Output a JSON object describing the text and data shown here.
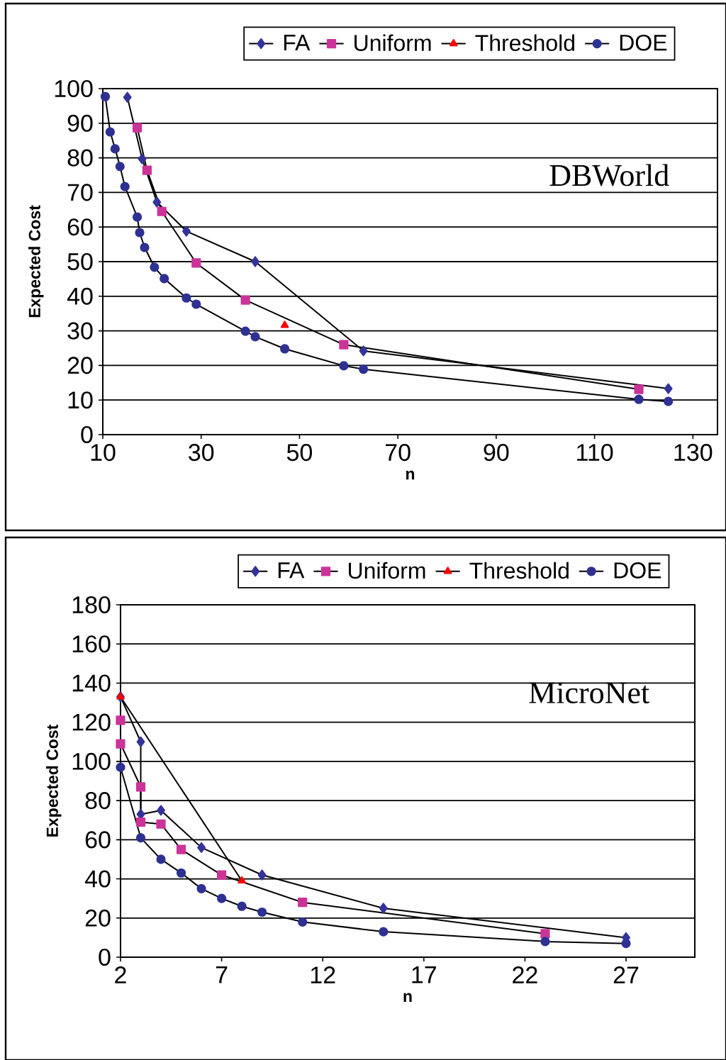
{
  "chart_data": [
    {
      "type": "line",
      "xlabel": "n",
      "ylabel": "Expected Cost",
      "annotations": [
        "DBWorld"
      ],
      "xlim": [
        10,
        135
      ],
      "ylim": [
        0,
        100
      ],
      "xticks": [
        10,
        30,
        50,
        70,
        90,
        110,
        130
      ],
      "yticks": [
        0,
        10,
        20,
        30,
        40,
        50,
        60,
        70,
        80,
        90,
        100
      ],
      "grid": "y",
      "legend": "top",
      "series": [
        {
          "name": "FA",
          "color": "#333399",
          "marker": "diamond",
          "x": [
            15,
            18,
            21,
            27,
            41,
            63,
            125
          ],
          "values": [
            97.5,
            79.7,
            67.2,
            58.8,
            50,
            24.2,
            13.3
          ]
        },
        {
          "name": "Uniform",
          "color": "#cc3399",
          "marker": "square",
          "x": [
            17,
            19,
            22,
            29,
            39,
            59,
            119
          ],
          "values": [
            88.7,
            76.4,
            64.5,
            49.6,
            38.9,
            26,
            13.1
          ]
        },
        {
          "name": "Threshold",
          "color": "#ff0000",
          "marker": "triangle",
          "x": [
            47
          ],
          "values": [
            31.6
          ]
        },
        {
          "name": "DOE",
          "color": "#2e3192",
          "marker": "circle",
          "x": [
            10.5,
            11.5,
            12.5,
            13.5,
            14.5,
            17,
            17.5,
            18.5,
            20.5,
            22.5,
            27,
            29,
            39,
            41,
            47,
            59,
            63,
            119,
            125
          ],
          "values": [
            97.7,
            87.5,
            82.6,
            77.5,
            71.7,
            62.9,
            58.4,
            54.1,
            48.4,
            45.1,
            39.5,
            37.7,
            29.9,
            28.3,
            24.8,
            19.9,
            18.9,
            10.2,
            9.6
          ]
        }
      ]
    },
    {
      "type": "line",
      "xlabel": "n",
      "ylabel": "Expected Cost",
      "annotations": [
        "MicroNet"
      ],
      "xlim": [
        2,
        30.4
      ],
      "ylim": [
        0,
        180
      ],
      "xticks": [
        2,
        7,
        12,
        17,
        22,
        27
      ],
      "yticks": [
        0,
        20,
        40,
        60,
        80,
        100,
        120,
        140,
        160,
        180
      ],
      "grid": "y",
      "legend": "top",
      "series": [
        {
          "name": "FA",
          "color": "#333399",
          "marker": "diamond",
          "x": [
            2,
            3,
            3,
            4,
            6,
            9,
            15,
            27
          ],
          "values": [
            133,
            110,
            73,
            75,
            56,
            42,
            25,
            10
          ]
        },
        {
          "name": "Uniform",
          "color": "#cc3399",
          "marker": "square",
          "x": [
            2,
            2,
            3,
            3,
            4,
            5,
            7,
            11,
            23
          ],
          "values": [
            121,
            109,
            87,
            69,
            68,
            55,
            42,
            28,
            12
          ]
        },
        {
          "name": "Threshold",
          "color": "#ff0000",
          "marker": "triangle",
          "x": [
            2,
            8
          ],
          "values": [
            133,
            39
          ]
        },
        {
          "name": "DOE",
          "color": "#2e3192",
          "marker": "circle",
          "x": [
            2,
            3,
            4,
            5,
            6,
            7,
            8,
            9,
            11,
            15,
            23,
            27
          ],
          "values": [
            97,
            61,
            50,
            43,
            35,
            30,
            26,
            23,
            18,
            13,
            8,
            7
          ]
        }
      ]
    }
  ]
}
